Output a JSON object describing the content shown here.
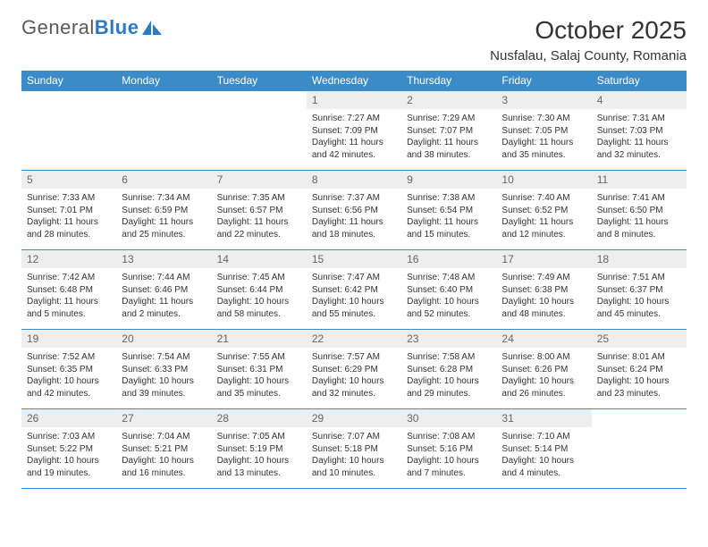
{
  "brand": {
    "part1": "General",
    "part2": "Blue"
  },
  "title": "October 2025",
  "location": "Nusfalau, Salaj County, Romania",
  "colors": {
    "header_bg": "#3b8bc9",
    "header_text": "#ffffff",
    "daynum_bg": "#eeeeee",
    "daynum_text": "#666666",
    "divider": "#3b8bc9",
    "body_text": "#333333",
    "brand_gray": "#5a5a5a",
    "brand_blue": "#2d7ac0"
  },
  "dayNames": [
    "Sunday",
    "Monday",
    "Tuesday",
    "Wednesday",
    "Thursday",
    "Friday",
    "Saturday"
  ],
  "weeks": [
    [
      null,
      null,
      null,
      {
        "n": "1",
        "sr": "Sunrise: 7:27 AM",
        "ss": "Sunset: 7:09 PM",
        "d1": "Daylight: 11 hours",
        "d2": "and 42 minutes."
      },
      {
        "n": "2",
        "sr": "Sunrise: 7:29 AM",
        "ss": "Sunset: 7:07 PM",
        "d1": "Daylight: 11 hours",
        "d2": "and 38 minutes."
      },
      {
        "n": "3",
        "sr": "Sunrise: 7:30 AM",
        "ss": "Sunset: 7:05 PM",
        "d1": "Daylight: 11 hours",
        "d2": "and 35 minutes."
      },
      {
        "n": "4",
        "sr": "Sunrise: 7:31 AM",
        "ss": "Sunset: 7:03 PM",
        "d1": "Daylight: 11 hours",
        "d2": "and 32 minutes."
      }
    ],
    [
      {
        "n": "5",
        "sr": "Sunrise: 7:33 AM",
        "ss": "Sunset: 7:01 PM",
        "d1": "Daylight: 11 hours",
        "d2": "and 28 minutes."
      },
      {
        "n": "6",
        "sr": "Sunrise: 7:34 AM",
        "ss": "Sunset: 6:59 PM",
        "d1": "Daylight: 11 hours",
        "d2": "and 25 minutes."
      },
      {
        "n": "7",
        "sr": "Sunrise: 7:35 AM",
        "ss": "Sunset: 6:57 PM",
        "d1": "Daylight: 11 hours",
        "d2": "and 22 minutes."
      },
      {
        "n": "8",
        "sr": "Sunrise: 7:37 AM",
        "ss": "Sunset: 6:56 PM",
        "d1": "Daylight: 11 hours",
        "d2": "and 18 minutes."
      },
      {
        "n": "9",
        "sr": "Sunrise: 7:38 AM",
        "ss": "Sunset: 6:54 PM",
        "d1": "Daylight: 11 hours",
        "d2": "and 15 minutes."
      },
      {
        "n": "10",
        "sr": "Sunrise: 7:40 AM",
        "ss": "Sunset: 6:52 PM",
        "d1": "Daylight: 11 hours",
        "d2": "and 12 minutes."
      },
      {
        "n": "11",
        "sr": "Sunrise: 7:41 AM",
        "ss": "Sunset: 6:50 PM",
        "d1": "Daylight: 11 hours",
        "d2": "and 8 minutes."
      }
    ],
    [
      {
        "n": "12",
        "sr": "Sunrise: 7:42 AM",
        "ss": "Sunset: 6:48 PM",
        "d1": "Daylight: 11 hours",
        "d2": "and 5 minutes."
      },
      {
        "n": "13",
        "sr": "Sunrise: 7:44 AM",
        "ss": "Sunset: 6:46 PM",
        "d1": "Daylight: 11 hours",
        "d2": "and 2 minutes."
      },
      {
        "n": "14",
        "sr": "Sunrise: 7:45 AM",
        "ss": "Sunset: 6:44 PM",
        "d1": "Daylight: 10 hours",
        "d2": "and 58 minutes."
      },
      {
        "n": "15",
        "sr": "Sunrise: 7:47 AM",
        "ss": "Sunset: 6:42 PM",
        "d1": "Daylight: 10 hours",
        "d2": "and 55 minutes."
      },
      {
        "n": "16",
        "sr": "Sunrise: 7:48 AM",
        "ss": "Sunset: 6:40 PM",
        "d1": "Daylight: 10 hours",
        "d2": "and 52 minutes."
      },
      {
        "n": "17",
        "sr": "Sunrise: 7:49 AM",
        "ss": "Sunset: 6:38 PM",
        "d1": "Daylight: 10 hours",
        "d2": "and 48 minutes."
      },
      {
        "n": "18",
        "sr": "Sunrise: 7:51 AM",
        "ss": "Sunset: 6:37 PM",
        "d1": "Daylight: 10 hours",
        "d2": "and 45 minutes."
      }
    ],
    [
      {
        "n": "19",
        "sr": "Sunrise: 7:52 AM",
        "ss": "Sunset: 6:35 PM",
        "d1": "Daylight: 10 hours",
        "d2": "and 42 minutes."
      },
      {
        "n": "20",
        "sr": "Sunrise: 7:54 AM",
        "ss": "Sunset: 6:33 PM",
        "d1": "Daylight: 10 hours",
        "d2": "and 39 minutes."
      },
      {
        "n": "21",
        "sr": "Sunrise: 7:55 AM",
        "ss": "Sunset: 6:31 PM",
        "d1": "Daylight: 10 hours",
        "d2": "and 35 minutes."
      },
      {
        "n": "22",
        "sr": "Sunrise: 7:57 AM",
        "ss": "Sunset: 6:29 PM",
        "d1": "Daylight: 10 hours",
        "d2": "and 32 minutes."
      },
      {
        "n": "23",
        "sr": "Sunrise: 7:58 AM",
        "ss": "Sunset: 6:28 PM",
        "d1": "Daylight: 10 hours",
        "d2": "and 29 minutes."
      },
      {
        "n": "24",
        "sr": "Sunrise: 8:00 AM",
        "ss": "Sunset: 6:26 PM",
        "d1": "Daylight: 10 hours",
        "d2": "and 26 minutes."
      },
      {
        "n": "25",
        "sr": "Sunrise: 8:01 AM",
        "ss": "Sunset: 6:24 PM",
        "d1": "Daylight: 10 hours",
        "d2": "and 23 minutes."
      }
    ],
    [
      {
        "n": "26",
        "sr": "Sunrise: 7:03 AM",
        "ss": "Sunset: 5:22 PM",
        "d1": "Daylight: 10 hours",
        "d2": "and 19 minutes."
      },
      {
        "n": "27",
        "sr": "Sunrise: 7:04 AM",
        "ss": "Sunset: 5:21 PM",
        "d1": "Daylight: 10 hours",
        "d2": "and 16 minutes."
      },
      {
        "n": "28",
        "sr": "Sunrise: 7:05 AM",
        "ss": "Sunset: 5:19 PM",
        "d1": "Daylight: 10 hours",
        "d2": "and 13 minutes."
      },
      {
        "n": "29",
        "sr": "Sunrise: 7:07 AM",
        "ss": "Sunset: 5:18 PM",
        "d1": "Daylight: 10 hours",
        "d2": "and 10 minutes."
      },
      {
        "n": "30",
        "sr": "Sunrise: 7:08 AM",
        "ss": "Sunset: 5:16 PM",
        "d1": "Daylight: 10 hours",
        "d2": "and 7 minutes."
      },
      {
        "n": "31",
        "sr": "Sunrise: 7:10 AM",
        "ss": "Sunset: 5:14 PM",
        "d1": "Daylight: 10 hours",
        "d2": "and 4 minutes."
      },
      null
    ]
  ]
}
